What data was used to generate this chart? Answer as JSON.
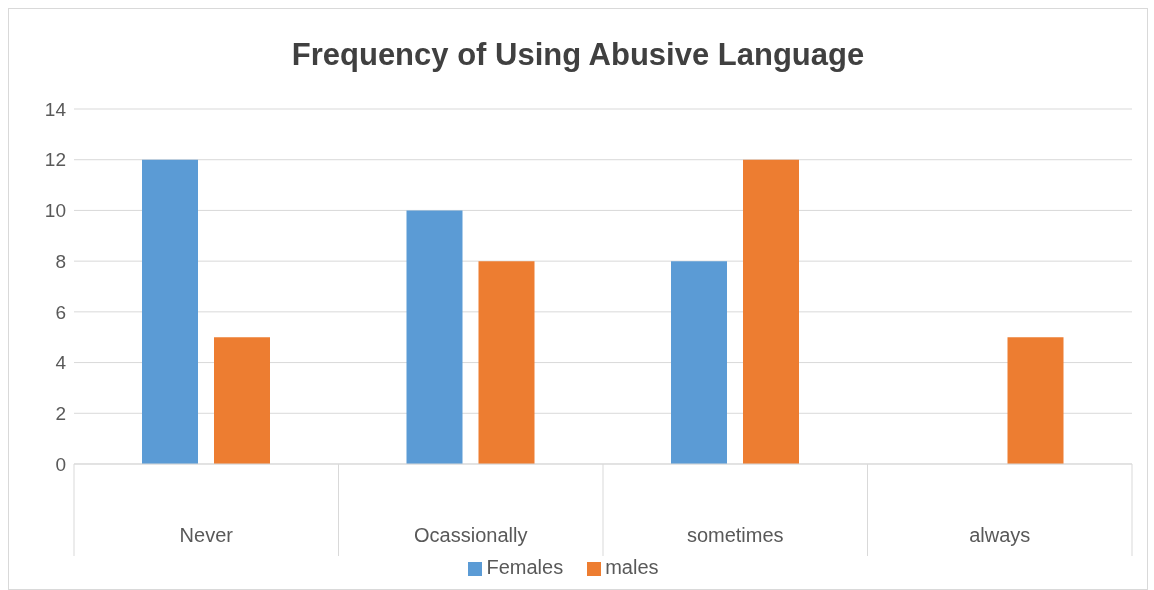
{
  "chart_data": {
    "type": "bar",
    "title": "Frequency of Using Abusive Language",
    "categories": [
      "Never",
      "Ocassionally",
      "sometimes",
      "always"
    ],
    "series": [
      {
        "name": "Females",
        "color": "#5b9bd5",
        "values": [
          12,
          10,
          8,
          0
        ]
      },
      {
        "name": "males",
        "color": "#ed7d31",
        "values": [
          5,
          8,
          12,
          5
        ]
      }
    ],
    "ylim": [
      0,
      14
    ],
    "yticks": [
      0,
      2,
      4,
      6,
      8,
      10,
      12,
      14
    ],
    "grid": "y",
    "legend": "bottom"
  }
}
